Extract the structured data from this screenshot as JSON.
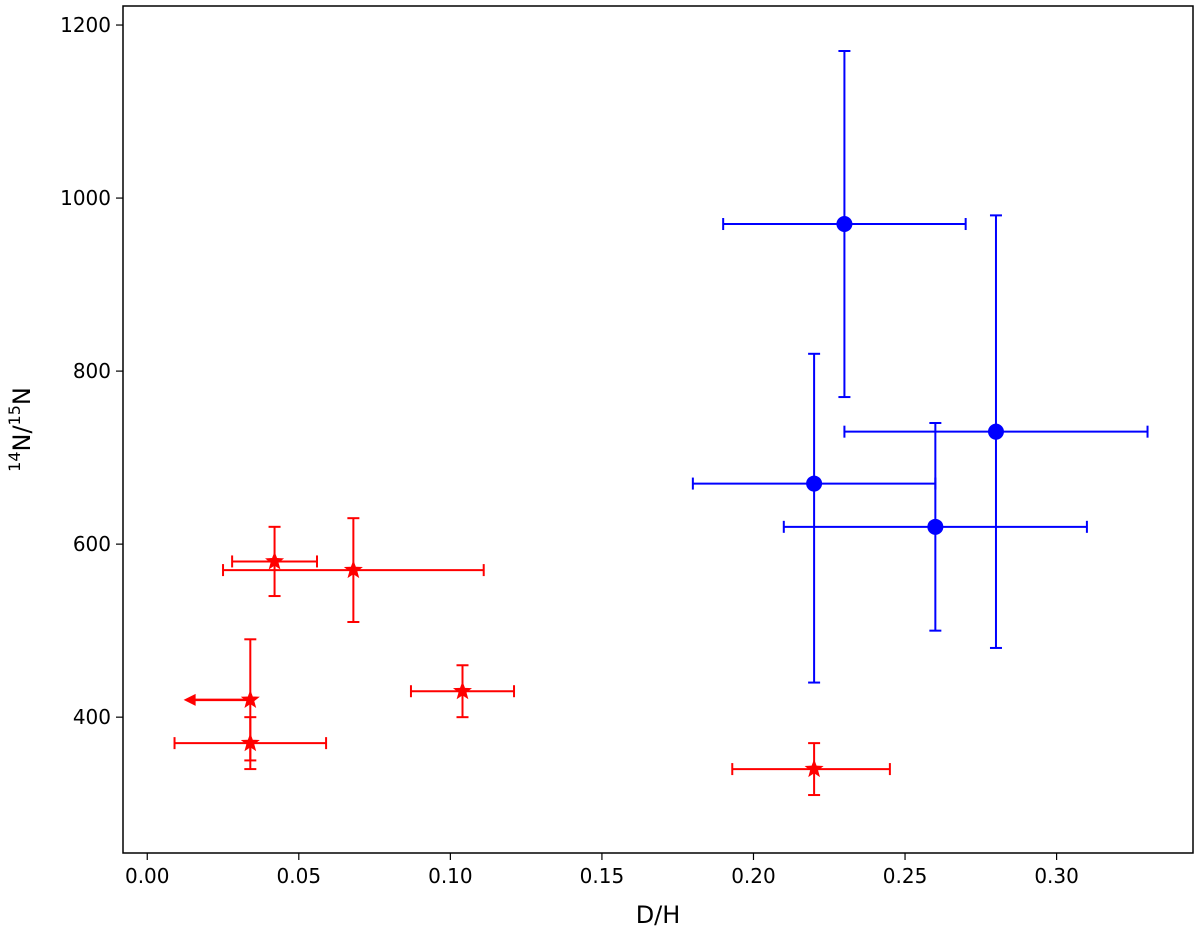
{
  "chart_data": {
    "type": "scatter",
    "title": "",
    "xlabel": "D/H",
    "ylabel": {
      "sup1": "14",
      "n1": "N/",
      "sup2": "15",
      "n2": "N"
    },
    "xlim": [
      -0.008,
      0.345
    ],
    "ylim": [
      243,
      1222
    ],
    "xticks": [
      0.0,
      0.05,
      0.1,
      0.15,
      0.2,
      0.25,
      0.3
    ],
    "xtick_labels": [
      "0.00",
      "0.05",
      "0.10",
      "0.15",
      "0.20",
      "0.25",
      "0.30"
    ],
    "yticks": [
      400,
      600,
      800,
      1000,
      1200
    ],
    "ytick_labels": [
      "400",
      "600",
      "800",
      "1000",
      "1200"
    ],
    "grid": false,
    "series": [
      {
        "color": "#0000ff",
        "marker": "circle",
        "points": [
          {
            "x": 0.23,
            "y": 970,
            "xerr": [
              0.19,
              0.27
            ],
            "yerr": [
              770,
              1170
            ]
          },
          {
            "x": 0.28,
            "y": 730,
            "xerr": [
              0.23,
              0.33
            ],
            "yerr": [
              480,
              980
            ]
          },
          {
            "x": 0.22,
            "y": 670,
            "xerr": [
              0.18,
              0.26
            ],
            "yerr": [
              440,
              820
            ]
          },
          {
            "x": 0.26,
            "y": 620,
            "xerr": [
              0.21,
              0.31
            ],
            "yerr": [
              500,
              740
            ]
          }
        ]
      },
      {
        "color": "#ff0000",
        "marker": "star",
        "points": [
          {
            "x": 0.042,
            "y": 580,
            "xerr": [
              0.028,
              0.056
            ],
            "yerr": [
              540,
              620
            ]
          },
          {
            "x": 0.068,
            "y": 570,
            "xerr": [
              0.025,
              0.111
            ],
            "yerr": [
              510,
              630
            ]
          },
          {
            "x": 0.104,
            "y": 430,
            "xerr": [
              0.087,
              0.121
            ],
            "yerr": [
              400,
              460
            ]
          },
          {
            "x": 0.034,
            "y": 420,
            "upper_limit_x": 0.012,
            "yerr": [
              350,
              490
            ]
          },
          {
            "x": 0.034,
            "y": 370,
            "xerr": [
              0.009,
              0.059
            ],
            "yerr": [
              340,
              400
            ]
          },
          {
            "x": 0.22,
            "y": 340,
            "xerr": [
              0.193,
              0.245
            ],
            "yerr": [
              310,
              370
            ]
          }
        ]
      }
    ]
  }
}
